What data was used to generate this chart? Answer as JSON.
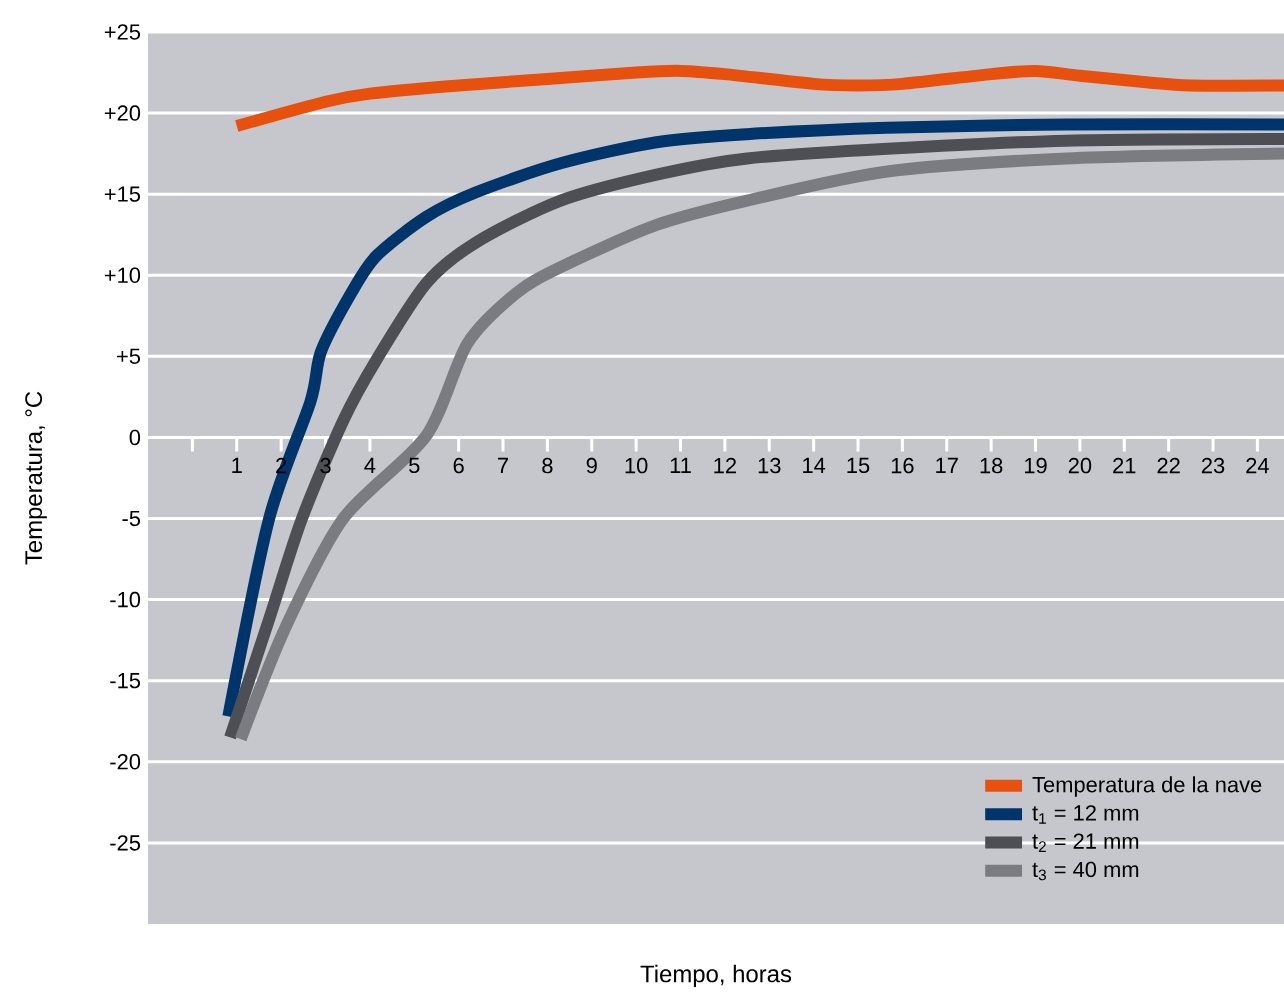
{
  "chart_data": {
    "type": "line",
    "xlabel": "Tiempo, horas",
    "ylabel": "Temperatura, °C",
    "xlim": [
      -1,
      24.6
    ],
    "ylim": [
      -30,
      25
    ],
    "xticks": [
      {
        "value": 0,
        "label": null
      },
      1,
      2,
      3,
      4,
      5,
      6,
      7,
      8,
      9,
      10,
      11,
      12,
      13,
      14,
      15,
      16,
      17,
      18,
      19,
      20,
      21,
      22,
      23,
      24
    ],
    "yticks": [
      -25,
      -20,
      -15,
      -10,
      -5,
      0,
      {
        "value": 5,
        "label": "+5"
      },
      {
        "value": 10,
        "label": "+10"
      },
      {
        "value": 15,
        "label": "+15"
      },
      {
        "value": 20,
        "label": "+20"
      },
      {
        "value": 25,
        "label": "+25"
      }
    ],
    "grid": "y",
    "legend": "bottom right",
    "series": [
      {
        "name": "Temperatura de la nave",
        "color": "#e8500e",
        "x": [
          1,
          3,
          4,
          6,
          8,
          10,
          11,
          12,
          14,
          15,
          16,
          18,
          19,
          20,
          21.5,
          22.5,
          24.6
        ],
        "values": [
          19.2,
          20.7,
          21.2,
          21.7,
          22.1,
          22.5,
          22.6,
          22.4,
          21.8,
          21.7,
          21.8,
          22.4,
          22.6,
          22.3,
          21.9,
          21.7,
          21.7
        ]
      },
      {
        "name": "t$_{1}$ = 12 mm",
        "color": "#00356b",
        "x": [
          0.81,
          1.73,
          2.66,
          2.9,
          3.58,
          4.15,
          5.27,
          6.38,
          8.3,
          10.46,
          12.5,
          15.66,
          19.7,
          24.6
        ],
        "values": [
          -17.2,
          -5,
          2.2,
          5.3,
          8.9,
          11.2,
          13.6,
          15.1,
          16.9,
          18.2,
          18.7,
          19.1,
          19.3,
          19.3
        ]
      },
      {
        "name": "t$_{2}$ = 21 mm",
        "color": "#4e4f55",
        "x": [
          0.85,
          1.73,
          2.47,
          3.41,
          4.15,
          5.27,
          6.38,
          8.3,
          10.46,
          12.5,
          15.66,
          19.7,
          24.6
        ],
        "values": [
          -18.5,
          -11.2,
          -5,
          1.1,
          4.8,
          9.5,
          12.0,
          14.6,
          16.2,
          17.2,
          17.8,
          18.3,
          18.4
        ]
      },
      {
        "name": "t$_{3}$ = 40 mm",
        "color": "#7a7c82",
        "x": [
          1.09,
          2.1,
          3.4,
          5.27,
          6.2,
          7.3,
          8.3,
          10.46,
          12.5,
          15.66,
          19.7,
          24.6
        ],
        "values": [
          -18.6,
          -11.7,
          -5,
          0.1,
          5.8,
          8.9,
          10.5,
          13.1,
          14.6,
          16.4,
          17.2,
          17.5
        ]
      }
    ]
  }
}
